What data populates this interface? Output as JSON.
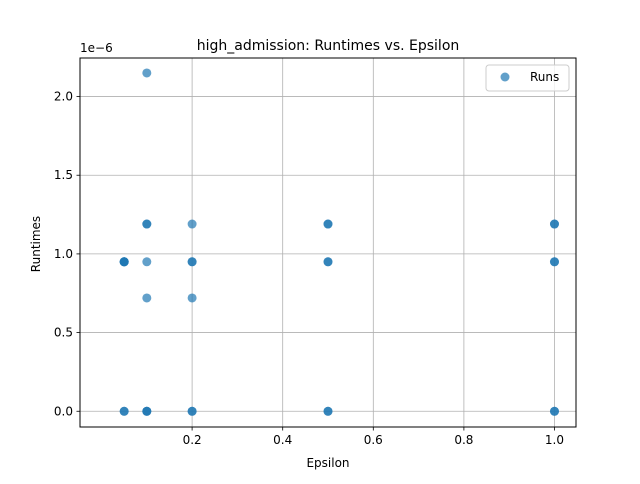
{
  "chart_data": {
    "type": "scatter",
    "title": "high_admission: Runtimes vs. Epsilon",
    "xlabel": "Epsilon",
    "ylabel": "Runtimes",
    "y_offset_label": "1e−6",
    "xlim": [
      -0.0475,
      1.0475
    ],
    "ylim": [
      -0.1,
      2.245
    ],
    "grid": true,
    "legend_placement": "top-right",
    "x_ticks": [
      {
        "value": 0.2,
        "label": "0.2"
      },
      {
        "value": 0.4,
        "label": "0.4"
      },
      {
        "value": 0.6,
        "label": "0.6"
      },
      {
        "value": 0.8,
        "label": "0.8"
      },
      {
        "value": 1.0,
        "label": "1.0"
      }
    ],
    "y_ticks": [
      {
        "value": 0.0,
        "label": "0.0"
      },
      {
        "value": 0.5,
        "label": "0.5"
      },
      {
        "value": 1.0,
        "label": "1.0"
      },
      {
        "value": 1.5,
        "label": "1.5"
      },
      {
        "value": 2.0,
        "label": "2.0"
      }
    ],
    "series": [
      {
        "name": "Runs",
        "color": "#1f77b4",
        "points": [
          {
            "x": 0.05,
            "y": 0.0
          },
          {
            "x": 0.05,
            "y": 0.95
          },
          {
            "x": 0.05,
            "y": 0.95
          },
          {
            "x": 0.05,
            "y": 0.95
          },
          {
            "x": 0.05,
            "y": 0.95
          },
          {
            "x": 0.05,
            "y": 0.0
          },
          {
            "x": 0.05,
            "y": 0.95
          },
          {
            "x": 0.1,
            "y": 2.15
          },
          {
            "x": 0.1,
            "y": 1.19
          },
          {
            "x": 0.1,
            "y": 1.19
          },
          {
            "x": 0.1,
            "y": 0.95
          },
          {
            "x": 0.1,
            "y": 0.72
          },
          {
            "x": 0.1,
            "y": 0.0
          },
          {
            "x": 0.1,
            "y": 0.0
          },
          {
            "x": 0.1,
            "y": 0.0
          },
          {
            "x": 0.2,
            "y": 1.19
          },
          {
            "x": 0.2,
            "y": 0.95
          },
          {
            "x": 0.2,
            "y": 0.95
          },
          {
            "x": 0.2,
            "y": 0.72
          },
          {
            "x": 0.2,
            "y": 0.0
          },
          {
            "x": 0.2,
            "y": 0.0
          },
          {
            "x": 0.5,
            "y": 1.19
          },
          {
            "x": 0.5,
            "y": 1.19
          },
          {
            "x": 0.5,
            "y": 0.95
          },
          {
            "x": 0.5,
            "y": 0.95
          },
          {
            "x": 0.5,
            "y": 0.0
          },
          {
            "x": 0.5,
            "y": 0.0
          },
          {
            "x": 1.0,
            "y": 1.19
          },
          {
            "x": 1.0,
            "y": 1.19
          },
          {
            "x": 1.0,
            "y": 0.95
          },
          {
            "x": 1.0,
            "y": 0.95
          },
          {
            "x": 1.0,
            "y": 0.0
          },
          {
            "x": 1.0,
            "y": 0.0
          }
        ]
      }
    ]
  }
}
